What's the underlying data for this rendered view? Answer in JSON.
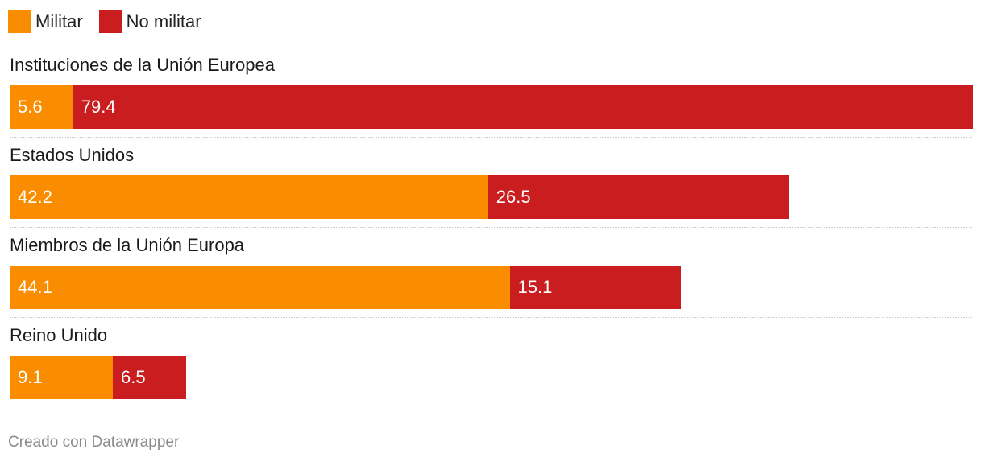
{
  "legend": [
    {
      "label": "Militar",
      "color": "#FA8C00"
    },
    {
      "label": "No militar",
      "color": "#C91D1F"
    }
  ],
  "chart_data": {
    "type": "bar",
    "orientation": "horizontal",
    "stacked": true,
    "categories": [
      "Instituciones de la Unión Europea",
      "Estados Unidos",
      "Miembros de la Unión Europa",
      "Reino Unido"
    ],
    "series": [
      {
        "name": "Militar",
        "color": "#FA8C00",
        "values": [
          5.6,
          42.2,
          44.1,
          9.1
        ]
      },
      {
        "name": "No militar",
        "color": "#C91D1F",
        "values": [
          79.4,
          26.5,
          15.1,
          6.5
        ]
      }
    ],
    "xlim": [
      0,
      85
    ],
    "grid": false,
    "legend_position": "top-left"
  },
  "footer": {
    "credit": "Creado con Datawrapper"
  }
}
